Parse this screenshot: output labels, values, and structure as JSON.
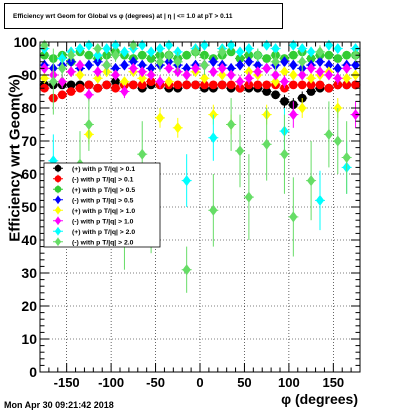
{
  "title": "Efficiency wrt Geom for Global vs φ (degrees) at | η | <= 1.0 at pT > 0.11",
  "timestamp": "Mon Apr 30 09:21:42 2018",
  "chart_data": {
    "type": "scatter",
    "title": "Efficiency wrt Geom for Global vs φ (degrees) at | η | <= 1.0 at pT > 0.11",
    "xlabel": "φ (degrees)",
    "ylabel": "Efficiency wrt Geom(%)",
    "xlim": [
      -180,
      180
    ],
    "ylim": [
      0,
      100
    ],
    "x_ticks": [
      -150,
      -100,
      -50,
      0,
      50,
      100,
      150
    ],
    "y_ticks": [
      0,
      10,
      20,
      30,
      40,
      50,
      60,
      70,
      80,
      90,
      100
    ],
    "grid": true,
    "legend_position": "left-middle",
    "x": [
      -175,
      -165,
      -155,
      -145,
      -135,
      -125,
      -115,
      -105,
      -95,
      -85,
      -75,
      -65,
      -55,
      -45,
      -35,
      -25,
      -15,
      -5,
      5,
      15,
      25,
      35,
      45,
      55,
      65,
      75,
      85,
      95,
      105,
      115,
      125,
      135,
      145,
      155,
      165,
      175
    ],
    "series": [
      {
        "name": "(+) with p T/|q| > 0.1",
        "color": "#000000",
        "marker": "circle",
        "values": [
          87,
          87,
          87,
          87,
          87,
          87,
          86,
          87,
          88,
          87,
          87,
          86,
          87,
          87,
          86,
          86,
          87,
          87,
          86,
          86,
          87,
          86,
          86,
          86,
          86,
          85,
          84,
          82,
          81,
          83,
          85,
          86,
          86,
          87,
          87,
          87
        ],
        "errors": [
          1,
          1,
          1,
          1,
          1,
          1,
          1,
          1,
          1,
          1,
          1,
          1,
          1,
          1,
          1,
          1,
          1,
          1,
          1,
          1,
          1,
          1,
          1,
          1,
          1,
          1,
          1,
          2,
          2,
          2,
          1,
          1,
          1,
          1,
          1,
          1
        ]
      },
      {
        "name": "(-) with p T/|q| > 0.1",
        "color": "#ff0000",
        "marker": "circle",
        "values": [
          86,
          83,
          84,
          85,
          86,
          87,
          86,
          87,
          86,
          87,
          87,
          87,
          88,
          87,
          87,
          87,
          87,
          87,
          87,
          87,
          87,
          87,
          86,
          87,
          87,
          87,
          87,
          86,
          87,
          87,
          87,
          87,
          86,
          87,
          87,
          87
        ],
        "errors": [
          1,
          1,
          1,
          1,
          1,
          1,
          1,
          1,
          1,
          1,
          1,
          1,
          1,
          1,
          1,
          1,
          1,
          1,
          1,
          1,
          1,
          1,
          1,
          1,
          1,
          1,
          1,
          1,
          1,
          1,
          1,
          1,
          1,
          1,
          1,
          1
        ]
      },
      {
        "name": "(+) with p T/|q| > 0.5",
        "color": "#33cc33",
        "marker": "circle",
        "values": [
          96,
          95,
          96,
          94,
          97,
          96,
          95,
          96,
          97,
          96,
          95,
          96,
          95,
          96,
          96,
          95,
          96,
          97,
          96,
          95,
          96,
          97,
          95,
          96,
          96,
          95,
          96,
          95,
          96,
          97,
          95,
          96,
          96,
          95,
          96,
          96
        ],
        "errors": [
          1,
          1,
          1,
          1,
          1,
          1,
          1,
          1,
          1,
          1,
          1,
          1,
          1,
          1,
          1,
          1,
          1,
          1,
          1,
          1,
          1,
          1,
          1,
          1,
          1,
          1,
          1,
          1,
          1,
          1,
          1,
          1,
          1,
          1,
          1,
          1
        ]
      },
      {
        "name": "(-) with p T/|q| > 0.5",
        "color": "#0000ff",
        "marker": "diamond",
        "values": [
          93,
          92,
          93,
          94,
          92,
          93,
          94,
          93,
          92,
          93,
          94,
          93,
          92,
          93,
          94,
          93,
          92,
          93,
          93,
          94,
          93,
          92,
          93,
          94,
          93,
          92,
          93,
          94,
          93,
          92,
          93,
          94,
          93,
          92,
          93,
          93
        ],
        "errors": [
          1,
          1,
          1,
          1,
          1,
          1,
          1,
          1,
          1,
          1,
          1,
          1,
          1,
          1,
          1,
          1,
          1,
          1,
          1,
          1,
          1,
          1,
          1,
          1,
          1,
          1,
          1,
          1,
          1,
          1,
          1,
          1,
          1,
          1,
          1,
          1
        ]
      },
      {
        "name": "(+) with p T/|q| > 1.0",
        "color": "#ffff00",
        "marker": "diamond",
        "values": [
          89,
          90,
          88,
          91,
          90,
          72,
          89,
          91,
          90,
          88,
          91,
          89,
          90,
          77,
          88,
          74,
          90,
          91,
          89,
          78,
          90,
          75,
          88,
          91,
          90,
          78,
          88,
          91,
          90,
          80,
          89,
          90,
          91,
          80,
          89,
          90
        ],
        "errors": [
          1,
          1,
          1,
          1,
          1,
          3,
          1,
          1,
          1,
          1,
          1,
          1,
          1,
          3,
          1,
          3,
          1,
          1,
          1,
          3,
          1,
          3,
          1,
          1,
          1,
          3,
          1,
          1,
          1,
          3,
          1,
          1,
          1,
          3,
          1,
          1
        ]
      },
      {
        "name": "(-) with p T/|q| > 1.0",
        "color": "#ff00ff",
        "marker": "diamond",
        "values": [
          92,
          90,
          88,
          91,
          93,
          84,
          91,
          93,
          90,
          85,
          92,
          91,
          90,
          88,
          92,
          91,
          90,
          92,
          93,
          91,
          92,
          90,
          88,
          89,
          91,
          92,
          90,
          88,
          78,
          90,
          92,
          91,
          90,
          89,
          92,
          78
        ],
        "errors": [
          1,
          2,
          2,
          1,
          1,
          2,
          1,
          1,
          1,
          2,
          1,
          1,
          1,
          2,
          1,
          1,
          1,
          1,
          1,
          1,
          1,
          1,
          2,
          2,
          1,
          1,
          1,
          2,
          4,
          1,
          1,
          1,
          1,
          2,
          1,
          4
        ]
      },
      {
        "name": "(+) with p T/|q| > 2.0",
        "color": "#00ffff",
        "marker": "diamond",
        "values": [
          98,
          64,
          95,
          97,
          98,
          99,
          96,
          98,
          99,
          97,
          98,
          99,
          97,
          98,
          99,
          97,
          58,
          98,
          99,
          71,
          98,
          99,
          97,
          98,
          96,
          99,
          98,
          73,
          99,
          98,
          97,
          52,
          99,
          98,
          62,
          98
        ],
        "errors": [
          1,
          8,
          2,
          1,
          1,
          1,
          2,
          1,
          1,
          1,
          1,
          1,
          1,
          1,
          1,
          1,
          8,
          1,
          1,
          7,
          1,
          1,
          1,
          1,
          2,
          1,
          1,
          7,
          1,
          1,
          1,
          9,
          1,
          1,
          8,
          1
        ]
      },
      {
        "name": "(-) with p T/|q| > 2.0",
        "color": "#66dd66",
        "marker": "diamond",
        "values": [
          99,
          88,
          92,
          96,
          63,
          75,
          98,
          93,
          96,
          43,
          99,
          66,
          48,
          94,
          96,
          94,
          31,
          97,
          93,
          49,
          97,
          75,
          67,
          53,
          96,
          69,
          94,
          66,
          47,
          94,
          58,
          97,
          72,
          70,
          65,
          96
        ],
        "errors": [
          1,
          10,
          3,
          2,
          10,
          8,
          1,
          3,
          2,
          12,
          1,
          10,
          12,
          3,
          2,
          3,
          7,
          2,
          3,
          11,
          2,
          8,
          11,
          13,
          2,
          11,
          3,
          12,
          12,
          3,
          12,
          2,
          10,
          10,
          11,
          2
        ]
      }
    ]
  }
}
